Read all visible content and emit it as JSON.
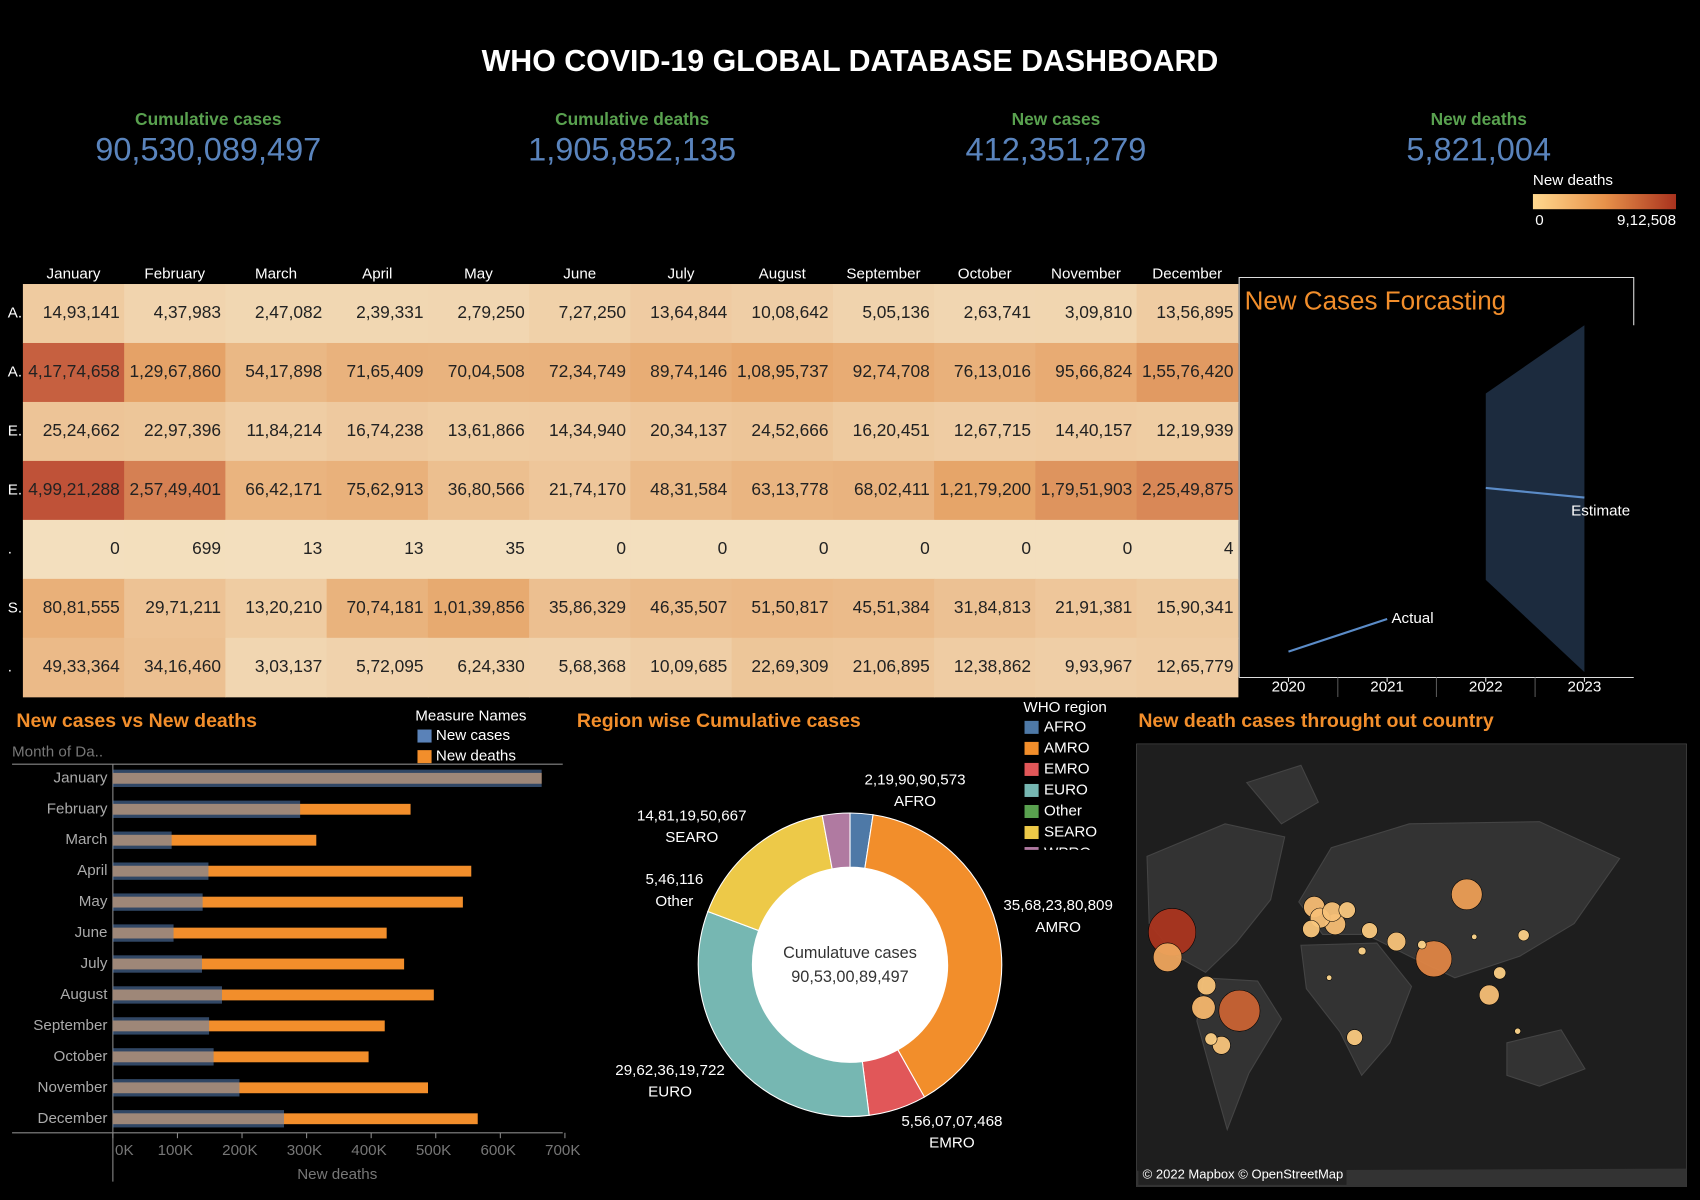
{
  "title": "WHO COVID-19 GLOBAL DATABASE DASHBOARD",
  "kpis": [
    {
      "label": "Cumulative cases",
      "value": "90,530,089,497"
    },
    {
      "label": "Cumulative deaths",
      "value": "1,905,852,135"
    },
    {
      "label": "New cases",
      "value": "412,351,279"
    },
    {
      "label": "New deaths",
      "value": "5,821,004"
    }
  ],
  "color_legend": {
    "title": "New deaths",
    "lim": [
      0,
      912508
    ],
    "ticks": [
      0,
      {
        "value": 912508,
        "label": "9,12,508"
      }
    ],
    "colors": [
      "#ffd88e",
      "#e8924a",
      "#a9321e"
    ]
  },
  "chart_data": [
    {
      "type": "heatmap",
      "categories": [
        "January",
        "February",
        "March",
        "April",
        "May",
        "June",
        "July",
        "August",
        "September",
        "October",
        "November",
        "December"
      ],
      "rows": [
        "A.",
        "A.",
        "E.",
        "E.",
        ".",
        "S.",
        "."
      ],
      "colors": [
        "#f3dfbe",
        "#e6a468",
        "#bf5238"
      ],
      "values": [
        [
          1493141,
          437983,
          247082,
          239331,
          279250,
          727250,
          1364844,
          1008642,
          505136,
          263741,
          309810,
          1356895
        ],
        [
          41774658,
          12967860,
          5417898,
          7165409,
          7004508,
          7234749,
          8974146,
          10895737,
          9274708,
          7613016,
          9566824,
          15576420
        ],
        [
          2524662,
          2297396,
          1184214,
          1674238,
          1361866,
          1434940,
          2034137,
          2452666,
          1620451,
          1267715,
          1440157,
          1219939
        ],
        [
          49921288,
          25749401,
          6642171,
          7562913,
          3680566,
          2174170,
          4831584,
          6313778,
          6802411,
          12179200,
          17951903,
          22549875
        ],
        [
          0,
          699,
          13,
          13,
          35,
          0,
          0,
          0,
          0,
          0,
          0,
          4
        ],
        [
          8081555,
          2971211,
          1320210,
          7074181,
          10139856,
          3586329,
          4635507,
          5150817,
          4551384,
          3184813,
          2191381,
          1590341
        ],
        [
          4933364,
          3416460,
          303137,
          572095,
          624330,
          568368,
          1009685,
          2269309,
          2106895,
          1238862,
          993967,
          1265779
        ]
      ],
      "value_labels": [
        [
          "14,93,141",
          "4,37,983",
          "2,47,082",
          "2,39,331",
          "2,79,250",
          "7,27,250",
          "13,64,844",
          "10,08,642",
          "5,05,136",
          "2,63,741",
          "3,09,810",
          "13,56,895"
        ],
        [
          "4,17,74,658",
          "1,29,67,860",
          "54,17,898",
          "71,65,409",
          "70,04,508",
          "72,34,749",
          "89,74,146",
          "1,08,95,737",
          "92,74,708",
          "76,13,016",
          "95,66,824",
          "1,55,76,420"
        ],
        [
          "25,24,662",
          "22,97,396",
          "11,84,214",
          "16,74,238",
          "13,61,866",
          "14,34,940",
          "20,34,137",
          "24,52,666",
          "16,20,451",
          "12,67,715",
          "14,40,157",
          "12,19,939"
        ],
        [
          "4,99,21,288",
          "2,57,49,401",
          "66,42,171",
          "75,62,913",
          "36,80,566",
          "21,74,170",
          "48,31,584",
          "63,13,778",
          "68,02,411",
          "1,21,79,200",
          "1,79,51,903",
          "2,25,49,875"
        ],
        [
          "0",
          "699",
          "13",
          "13",
          "35",
          "0",
          "0",
          "0",
          "0",
          "0",
          "0",
          "4"
        ],
        [
          "80,81,555",
          "29,71,211",
          "13,20,210",
          "70,74,181",
          "1,01,39,856",
          "35,86,329",
          "46,35,507",
          "51,50,817",
          "45,51,384",
          "31,84,813",
          "21,91,381",
          "15,90,341"
        ],
        [
          "49,33,364",
          "34,16,460",
          "3,03,137",
          "5,72,095",
          "6,24,330",
          "5,68,368",
          "10,09,685",
          "22,69,309",
          "21,06,895",
          "12,38,862",
          "9,93,967",
          "12,65,779"
        ]
      ]
    },
    {
      "type": "line",
      "title": "New Cases Forcasting",
      "x": [
        2020,
        2021,
        2022,
        2023
      ],
      "xlim": [
        2019.5,
        2023.5
      ],
      "xticks": [
        2020,
        2021,
        2022,
        2023
      ],
      "ylim": [
        0,
        100
      ],
      "series": [
        {
          "name": "Actual",
          "color": "#5b8cc8",
          "values": [
            5.9,
            15.3,
            null,
            null
          ]
        },
        {
          "name": "Estimate",
          "color": "#5b8cc8",
          "values": [
            null,
            null,
            53.1,
            50.3
          ]
        }
      ],
      "band": {
        "color": "#1c2b3e",
        "lower": [
          null,
          null,
          26.6,
          0
        ],
        "upper": [
          null,
          null,
          80.3,
          100
        ]
      }
    },
    {
      "type": "bar",
      "orientation": "horizontal",
      "title": "New cases vs New deaths",
      "legend_title": "Measure Names",
      "y_label": "Month of Da..",
      "x_label": "New deaths",
      "categories": [
        "January",
        "February",
        "March",
        "April",
        "May",
        "June",
        "July",
        "August",
        "September",
        "October",
        "November",
        "December"
      ],
      "xlim": [
        0,
        700000
      ],
      "xticks": [
        {
          "value": 0,
          "label": "0K"
        },
        {
          "value": 100000,
          "label": "100K"
        },
        {
          "value": 200000,
          "label": "200K"
        },
        {
          "value": 300000,
          "label": "300K"
        },
        {
          "value": 400000,
          "label": "400K"
        },
        {
          "value": 500000,
          "label": "500K"
        },
        {
          "value": 600000,
          "label": "600K"
        },
        {
          "value": 700000,
          "label": "700K"
        }
      ],
      "series": [
        {
          "name": "New cases",
          "color": "#5a82b8",
          "values": [
            664000,
            290000,
            91000,
            148000,
            139000,
            94000,
            138000,
            169000,
            149000,
            156000,
            196000,
            265000
          ]
        },
        {
          "name": "New deaths",
          "color": "#f28e2b",
          "values": [
            664000,
            461000,
            315000,
            555000,
            542000,
            424000,
            451000,
            497000,
            421000,
            396000,
            488000,
            565000
          ]
        }
      ]
    },
    {
      "type": "pie",
      "title": "Region wise Cumulative cases",
      "legend_title": "WHO region",
      "center_label": "Cumulatuve cases",
      "center_value": "90,53,00,89,497",
      "categories": [
        "AFRO",
        "AMRO",
        "EMRO",
        "EURO",
        "Other",
        "SEARO",
        "WPRO"
      ],
      "colors": [
        "#4e79a7",
        "#f28e2b",
        "#e15759",
        "#76b7b2",
        "#59a14f",
        "#edc948",
        "#b07aa1"
      ],
      "values": [
        2199090573,
        35682380809,
        5560707468,
        29623619722,
        546116,
        14811950667,
        2651794142
      ],
      "value_labels": [
        "2,19,90,90,573",
        "35,68,23,80,809",
        "5,56,07,07,468",
        "29,62,36,19,722",
        "5,46,116",
        "14,81,19,50,667",
        null
      ]
    },
    {
      "type": "map",
      "title": "New death cases throught out country",
      "attribution": "© 2022 Mapbox © OpenStreetMap",
      "lon": [
        -97,
        -100,
        -52,
        -76,
        -74,
        -64,
        -71,
        -2,
        2,
        12,
        10,
        -4,
        20,
        100,
        53,
        78,
        115,
        25,
        35,
        122,
        138,
        134,
        30,
        8,
        70,
        105
      ],
      "lat": [
        38,
        22,
        -12,
        -10,
        4,
        -34,
        -30,
        54,
        47,
        43,
        51,
        40,
        52,
        62,
        32,
        21,
        -2,
        -29,
        39,
        12,
        36,
        -25,
        26,
        9,
        30,
        35
      ],
      "values": [
        900000,
        330000,
        680000,
        220000,
        140000,
        130000,
        60000,
        180000,
        160000,
        175000,
        150000,
        120000,
        110000,
        380000,
        140000,
        520000,
        160000,
        100000,
        100000,
        60000,
        50000,
        15000,
        25000,
        3000,
        30000,
        5000
      ]
    }
  ]
}
